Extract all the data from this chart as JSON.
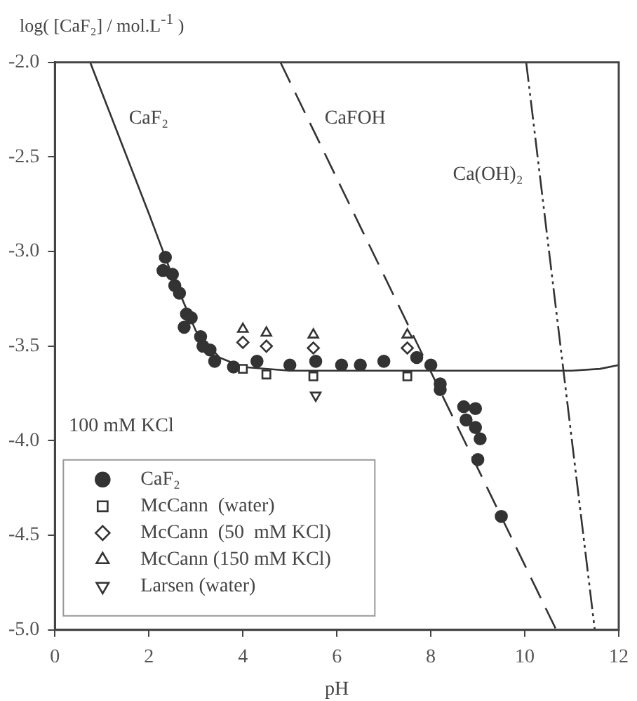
{
  "chart_data": {
    "type": "scatter",
    "ylabel": "log( [CaF₂] / mol.L$^{-1}$ )",
    "xlabel": "pH",
    "xlim": [
      0,
      12
    ],
    "xticks": [
      0,
      2,
      4,
      6,
      8,
      10,
      12
    ],
    "ylim": [
      -5,
      -2
    ],
    "yticks": [
      {
        "value": -5,
        "label": "-5.0"
      },
      {
        "value": -4.5,
        "label": "-4.5"
      },
      {
        "value": -4,
        "label": "-4.0"
      },
      {
        "value": -3.5,
        "label": "-3.5"
      },
      {
        "value": -3,
        "label": "-3.0"
      },
      {
        "value": -2.5,
        "label": "-2.5"
      },
      {
        "value": -2,
        "label": "-2.0"
      }
    ],
    "grid": false,
    "legend": "bottom left",
    "series": [
      {
        "type": "line",
        "name": "CaF₂",
        "color": "#333333",
        "line_style": "solid",
        "marker": "none",
        "x": [
          0.75,
          2.0,
          2.5,
          3.0,
          3.5,
          4.0,
          5.0,
          11.0,
          11.6,
          12.0
        ],
        "values": [
          -2.0,
          -2.8,
          -3.13,
          -3.42,
          -3.56,
          -3.61,
          -3.63,
          -3.63,
          -3.62,
          -3.6
        ]
      },
      {
        "type": "line",
        "name": "CaFOH",
        "color": "#333333",
        "line_style": "dashed",
        "marker": "none",
        "x": [
          4.8,
          10.67
        ],
        "values": [
          -2.0,
          -5.0
        ]
      },
      {
        "type": "line",
        "name": "Ca(OH)₂",
        "color": "#333333",
        "line_style": "dashdot",
        "marker": "none",
        "x": [
          10.03,
          11.49
        ],
        "values": [
          -2.0,
          -5.0
        ]
      },
      {
        "name": "CaF₂",
        "color": "#333333",
        "marker": "circle",
        "x": [
          2.35,
          2.3,
          2.5,
          2.55,
          2.65,
          2.8,
          2.75,
          2.9,
          3.1,
          3.15,
          3.3,
          3.4,
          3.8,
          4.3,
          5.0,
          5.55,
          6.1,
          6.5,
          7.0,
          7.7,
          8.0,
          8.2,
          8.2,
          8.7,
          8.95,
          8.75,
          8.95,
          9.05,
          9.0,
          9.5
        ],
        "values": [
          -3.03,
          -3.1,
          -3.12,
          -3.18,
          -3.22,
          -3.33,
          -3.4,
          -3.35,
          -3.45,
          -3.5,
          -3.52,
          -3.58,
          -3.61,
          -3.58,
          -3.6,
          -3.58,
          -3.6,
          -3.6,
          -3.58,
          -3.56,
          -3.6,
          -3.7,
          -3.73,
          -3.82,
          -3.83,
          -3.89,
          -3.93,
          -3.99,
          -4.1,
          -4.4
        ]
      },
      {
        "name": "McCann  (water)",
        "color": "#333333",
        "marker": "square",
        "x": [
          4.0,
          4.5,
          5.5,
          7.5
        ],
        "values": [
          -3.62,
          -3.65,
          -3.66,
          -3.66
        ]
      },
      {
        "name": "McCann  (50  mM KCl)",
        "color": "#333333",
        "marker": "diamond",
        "x": [
          4.0,
          4.5,
          5.5,
          7.5
        ],
        "values": [
          -3.48,
          -3.5,
          -3.51,
          -3.51
        ]
      },
      {
        "name": "McCann (150 mM KCl)",
        "color": "#333333",
        "marker": "triangle",
        "x": [
          4.0,
          4.5,
          5.5,
          7.5
        ],
        "values": [
          -3.41,
          -3.43,
          -3.44,
          -3.44
        ]
      },
      {
        "name": "Larsen (water)",
        "color": "#333333",
        "marker": "triangle-down",
        "x": [
          5.55
        ],
        "values": [
          -3.76
        ]
      }
    ],
    "annotations": [
      "100 mM KCl"
    ]
  }
}
